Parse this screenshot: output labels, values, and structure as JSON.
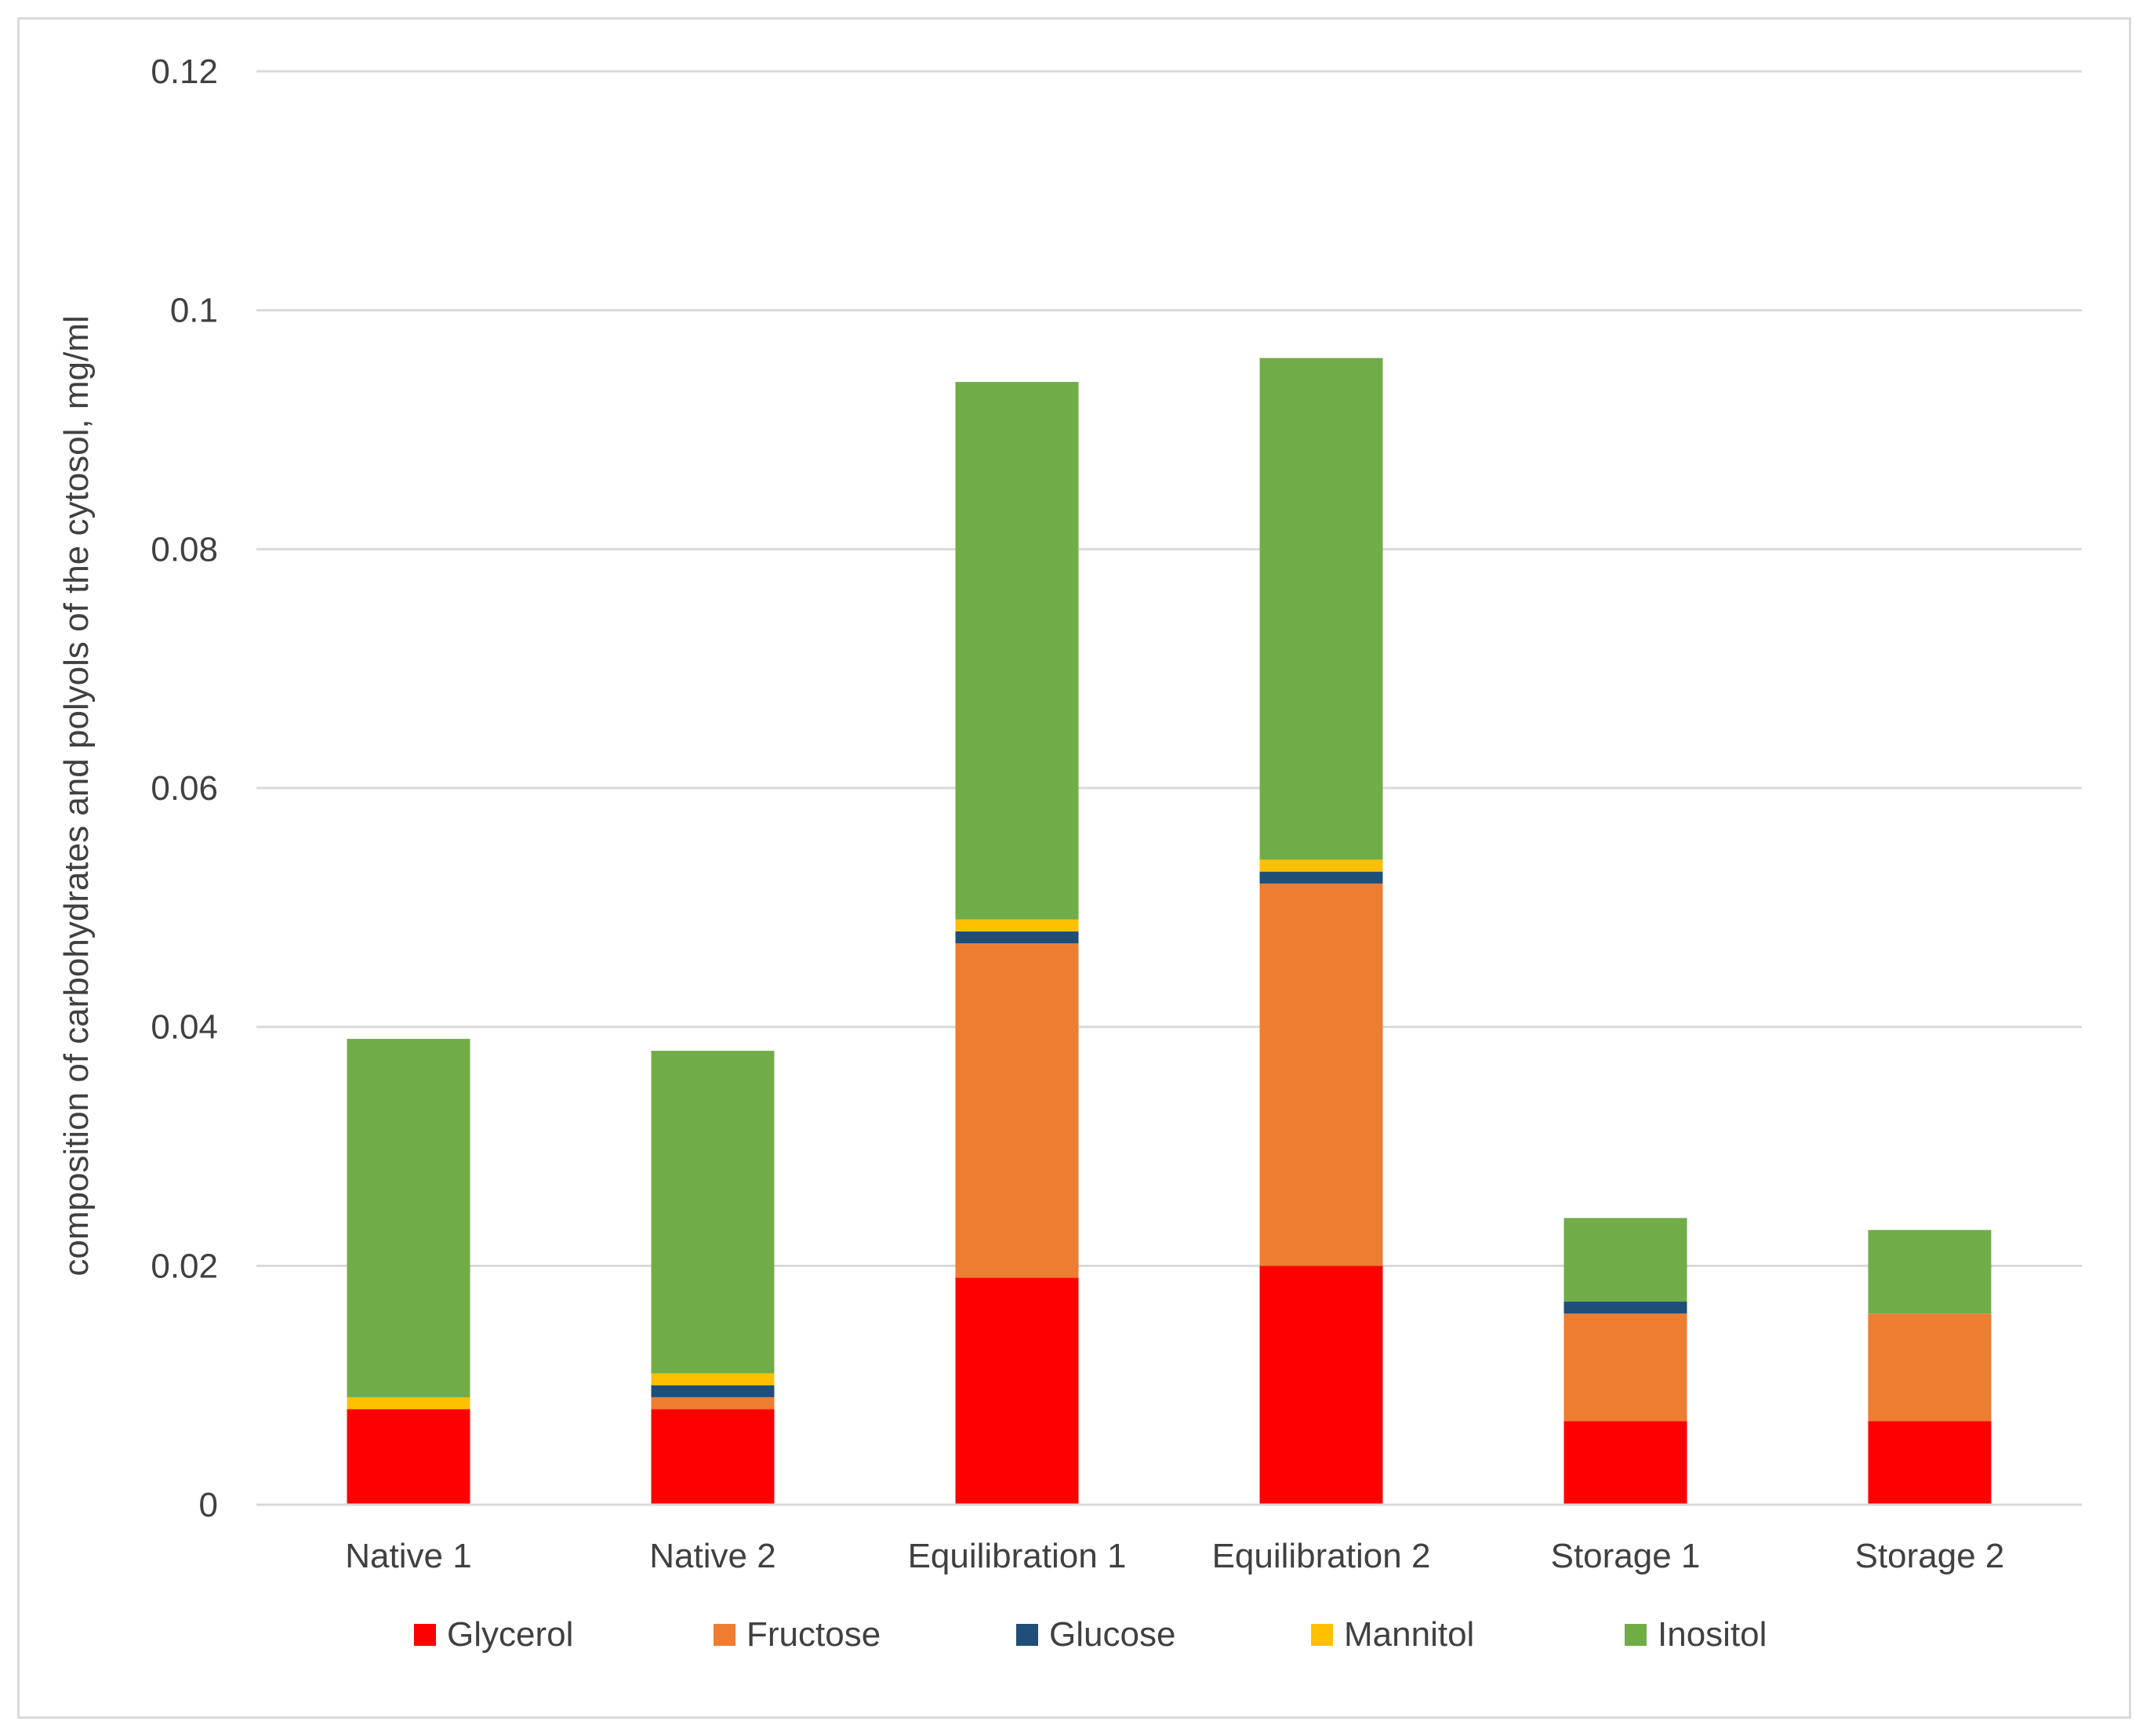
{
  "chart_data": {
    "type": "bar",
    "stacked": true,
    "title": "",
    "xlabel": "",
    "ylabel": "composition of carbohydrates and polyols of the cytosol, mg/ml",
    "ylim": [
      0,
      0.12
    ],
    "yticks": [
      0,
      0.02,
      0.04,
      0.06,
      0.08,
      0.1,
      0.12
    ],
    "ytick_labels": [
      "0",
      "0.02",
      "0.04",
      "0.06",
      "0.08",
      "0.1",
      "0.12"
    ],
    "grid": true,
    "legend_position": "bottom",
    "categories": [
      "Native 1",
      "Native 2",
      "Equilibration 1",
      "Equilibration 2",
      "Storage 1",
      "Storage 2"
    ],
    "series": [
      {
        "name": "Glycerol",
        "color": "#ff0000",
        "values": [
          0.008,
          0.008,
          0.019,
          0.02,
          0.007,
          0.007
        ]
      },
      {
        "name": "Fructose",
        "color": "#ed7d31",
        "values": [
          0.0,
          0.001,
          0.028,
          0.032,
          0.009,
          0.009
        ]
      },
      {
        "name": "Glucose",
        "color": "#1f4e79",
        "values": [
          0.0,
          0.001,
          0.001,
          0.001,
          0.001,
          0.0
        ]
      },
      {
        "name": "Mannitol",
        "color": "#ffc000",
        "values": [
          0.001,
          0.001,
          0.001,
          0.001,
          0.0,
          0.0
        ]
      },
      {
        "name": "Inositol",
        "color": "#70ad47",
        "values": [
          0.03,
          0.027,
          0.045,
          0.042,
          0.007,
          0.007
        ]
      }
    ]
  }
}
